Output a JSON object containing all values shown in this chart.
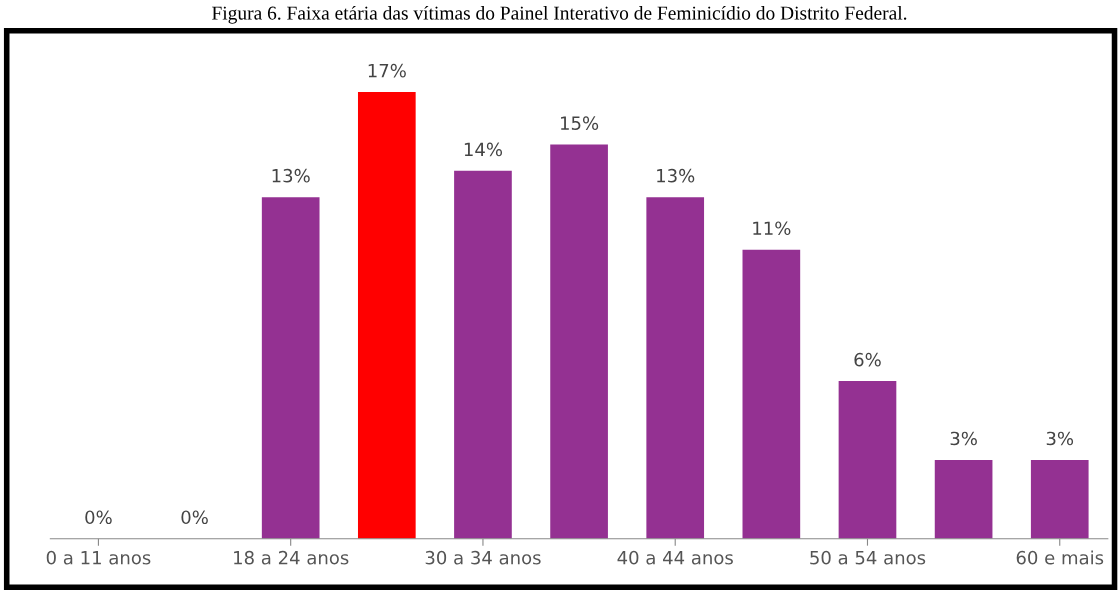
{
  "chart_data": {
    "type": "bar",
    "title": "Figura 6. Faixa etária das vítimas do Painel Interativo de Feminicídio do Distrito Federal.",
    "categories": [
      "0 a 11 anos",
      null,
      "18 a 24 anos",
      null,
      "30 a 34 anos",
      null,
      "40 a 44 anos",
      null,
      "50 a 54 anos",
      null,
      "60 e mais"
    ],
    "values": [
      0,
      0,
      13,
      17,
      14,
      15,
      13,
      11,
      6,
      3,
      3
    ],
    "colors": [
      "#943192",
      "#943192",
      "#943192",
      "#ff0000",
      "#943192",
      "#943192",
      "#943192",
      "#943192",
      "#943192",
      "#943192",
      "#943192"
    ],
    "value_labels": [
      "0%",
      "0%",
      "13%",
      "17%",
      "14%",
      "15%",
      "13%",
      "11%",
      "6%",
      "3%",
      "3%"
    ],
    "tick_labels": "x",
    "grid": false
  }
}
